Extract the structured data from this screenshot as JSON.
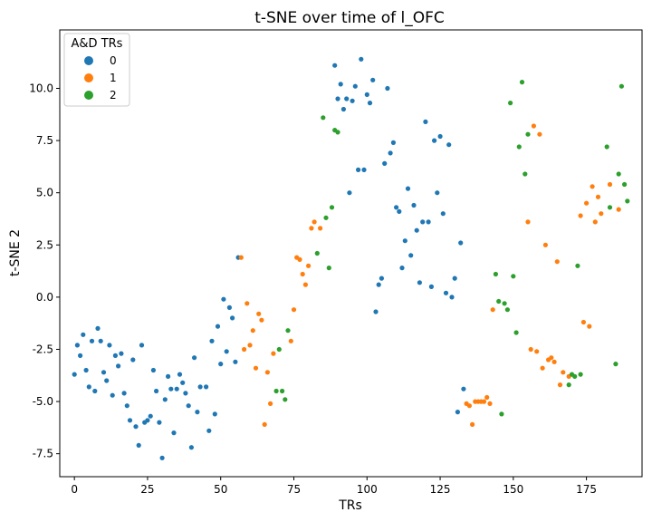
{
  "chart_data": {
    "type": "scatter",
    "title": "t-SNE over time of l_OFC",
    "xlabel": "TRs",
    "ylabel": "t-SNE 2",
    "xlim": [
      -5,
      194
    ],
    "ylim": [
      -8.6,
      12.8
    ],
    "xticks": [
      0,
      25,
      50,
      75,
      100,
      125,
      150,
      175
    ],
    "yticks": [
      -7.5,
      -5.0,
      -2.5,
      0.0,
      2.5,
      5.0,
      7.5,
      10.0
    ],
    "grid": false,
    "legend": {
      "title": "A&D TRs",
      "placement": "top-left"
    },
    "series": [
      {
        "name": "0",
        "color": "#1f77b4",
        "points": [
          [
            0,
            -3.7
          ],
          [
            1,
            -2.3
          ],
          [
            2,
            -2.8
          ],
          [
            3,
            -1.8
          ],
          [
            4,
            -3.5
          ],
          [
            5,
            -4.3
          ],
          [
            6,
            -2.1
          ],
          [
            7,
            -4.5
          ],
          [
            8,
            -1.5
          ],
          [
            9,
            -2.1
          ],
          [
            10,
            -3.6
          ],
          [
            11,
            -4.0
          ],
          [
            12,
            -2.3
          ],
          [
            13,
            -4.7
          ],
          [
            14,
            -2.8
          ],
          [
            15,
            -3.3
          ],
          [
            16,
            -2.7
          ],
          [
            17,
            -4.6
          ],
          [
            18,
            -5.2
          ],
          [
            19,
            -5.9
          ],
          [
            20,
            -3.0
          ],
          [
            21,
            -6.2
          ],
          [
            22,
            -7.1
          ],
          [
            23,
            -2.3
          ],
          [
            24,
            -6.0
          ],
          [
            25,
            -5.9
          ],
          [
            26,
            -5.7
          ],
          [
            27,
            -3.5
          ],
          [
            28,
            -4.5
          ],
          [
            29,
            -6.0
          ],
          [
            30,
            -7.7
          ],
          [
            31,
            -4.9
          ],
          [
            32,
            -3.8
          ],
          [
            33,
            -4.4
          ],
          [
            34,
            -6.5
          ],
          [
            35,
            -4.4
          ],
          [
            36,
            -3.7
          ],
          [
            37,
            -4.1
          ],
          [
            38,
            -4.6
          ],
          [
            39,
            -5.2
          ],
          [
            40,
            -7.2
          ],
          [
            41,
            -2.9
          ],
          [
            42,
            -5.5
          ],
          [
            43,
            -4.3
          ],
          [
            45,
            -4.3
          ],
          [
            46,
            -6.4
          ],
          [
            47,
            -2.1
          ],
          [
            48,
            -5.6
          ],
          [
            49,
            -1.4
          ],
          [
            50,
            -3.2
          ],
          [
            51,
            -0.1
          ],
          [
            52,
            -2.6
          ],
          [
            53,
            -0.5
          ],
          [
            54,
            -1.0
          ],
          [
            55,
            -3.1
          ],
          [
            56,
            1.9
          ],
          [
            89,
            11.1
          ],
          [
            90,
            9.5
          ],
          [
            91,
            10.2
          ],
          [
            92,
            9.0
          ],
          [
            93,
            9.5
          ],
          [
            94,
            5.0
          ],
          [
            95,
            9.4
          ],
          [
            96,
            10.1
          ],
          [
            97,
            6.1
          ],
          [
            98,
            11.4
          ],
          [
            99,
            6.1
          ],
          [
            100,
            9.7
          ],
          [
            101,
            9.3
          ],
          [
            102,
            10.4
          ],
          [
            103,
            -0.7
          ],
          [
            104,
            0.6
          ],
          [
            105,
            0.9
          ],
          [
            106,
            6.4
          ],
          [
            107,
            10.0
          ],
          [
            108,
            6.9
          ],
          [
            109,
            7.4
          ],
          [
            110,
            4.3
          ],
          [
            111,
            4.1
          ],
          [
            112,
            1.4
          ],
          [
            113,
            2.7
          ],
          [
            114,
            5.2
          ],
          [
            115,
            2.0
          ],
          [
            116,
            4.4
          ],
          [
            117,
            3.2
          ],
          [
            118,
            0.7
          ],
          [
            119,
            3.6
          ],
          [
            120,
            8.4
          ],
          [
            121,
            3.6
          ],
          [
            122,
            0.5
          ],
          [
            123,
            7.5
          ],
          [
            124,
            5.0
          ],
          [
            125,
            7.7
          ],
          [
            126,
            4.0
          ],
          [
            127,
            0.2
          ],
          [
            128,
            7.3
          ],
          [
            129,
            0.0
          ],
          [
            130,
            0.9
          ],
          [
            131,
            -5.5
          ],
          [
            132,
            2.6
          ],
          [
            133,
            -4.4
          ]
        ]
      },
      {
        "name": "1",
        "color": "#ff7f0e",
        "points": [
          [
            57,
            1.9
          ],
          [
            58,
            -2.5
          ],
          [
            59,
            -0.3
          ],
          [
            60,
            -2.3
          ],
          [
            61,
            -1.6
          ],
          [
            62,
            -3.4
          ],
          [
            63,
            -0.8
          ],
          [
            64,
            -1.1
          ],
          [
            65,
            -6.1
          ],
          [
            66,
            -3.6
          ],
          [
            67,
            -5.1
          ],
          [
            68,
            -2.7
          ],
          [
            74,
            -2.1
          ],
          [
            75,
            -0.6
          ],
          [
            76,
            1.9
          ],
          [
            77,
            1.8
          ],
          [
            78,
            1.1
          ],
          [
            79,
            0.6
          ],
          [
            80,
            1.5
          ],
          [
            81,
            3.3
          ],
          [
            82,
            3.6
          ],
          [
            84,
            3.3
          ],
          [
            134,
            -5.1
          ],
          [
            135,
            -5.2
          ],
          [
            136,
            -6.1
          ],
          [
            137,
            -5.0
          ],
          [
            138,
            -5.0
          ],
          [
            139,
            -5.0
          ],
          [
            140,
            -5.0
          ],
          [
            141,
            -4.8
          ],
          [
            142,
            -5.1
          ],
          [
            143,
            -0.6
          ],
          [
            155,
            3.6
          ],
          [
            156,
            -2.5
          ],
          [
            157,
            8.2
          ],
          [
            158,
            -2.6
          ],
          [
            159,
            7.8
          ],
          [
            160,
            -3.4
          ],
          [
            161,
            2.5
          ],
          [
            162,
            -3.0
          ],
          [
            163,
            -2.9
          ],
          [
            164,
            -3.1
          ],
          [
            165,
            1.7
          ],
          [
            166,
            -4.2
          ],
          [
            167,
            -3.6
          ],
          [
            169,
            -3.8
          ],
          [
            173,
            3.9
          ],
          [
            174,
            -1.2
          ],
          [
            175,
            4.5
          ],
          [
            176,
            -1.4
          ],
          [
            177,
            5.3
          ],
          [
            178,
            3.6
          ],
          [
            179,
            4.8
          ],
          [
            180,
            4.0
          ],
          [
            183,
            5.4
          ],
          [
            186,
            4.2
          ]
        ]
      },
      {
        "name": "2",
        "color": "#2ca02c",
        "points": [
          [
            69,
            -4.5
          ],
          [
            70,
            -2.5
          ],
          [
            71,
            -4.5
          ],
          [
            72,
            -4.9
          ],
          [
            73,
            -1.6
          ],
          [
            83,
            2.1
          ],
          [
            85,
            8.6
          ],
          [
            86,
            3.8
          ],
          [
            87,
            1.4
          ],
          [
            88,
            4.3
          ],
          [
            89,
            8.0
          ],
          [
            90,
            7.9
          ],
          [
            144,
            1.1
          ],
          [
            145,
            -0.2
          ],
          [
            146,
            -5.6
          ],
          [
            147,
            -0.3
          ],
          [
            148,
            -0.6
          ],
          [
            149,
            9.3
          ],
          [
            150,
            1.0
          ],
          [
            151,
            -1.7
          ],
          [
            152,
            7.2
          ],
          [
            153,
            10.3
          ],
          [
            154,
            5.9
          ],
          [
            155,
            7.8
          ],
          [
            169,
            -4.2
          ],
          [
            170,
            -3.7
          ],
          [
            171,
            -3.8
          ],
          [
            172,
            1.5
          ],
          [
            173,
            -3.7
          ],
          [
            182,
            7.2
          ],
          [
            183,
            4.3
          ],
          [
            185,
            -3.2
          ],
          [
            186,
            5.9
          ],
          [
            187,
            10.1
          ],
          [
            188,
            5.4
          ],
          [
            189,
            4.6
          ]
        ]
      }
    ]
  }
}
